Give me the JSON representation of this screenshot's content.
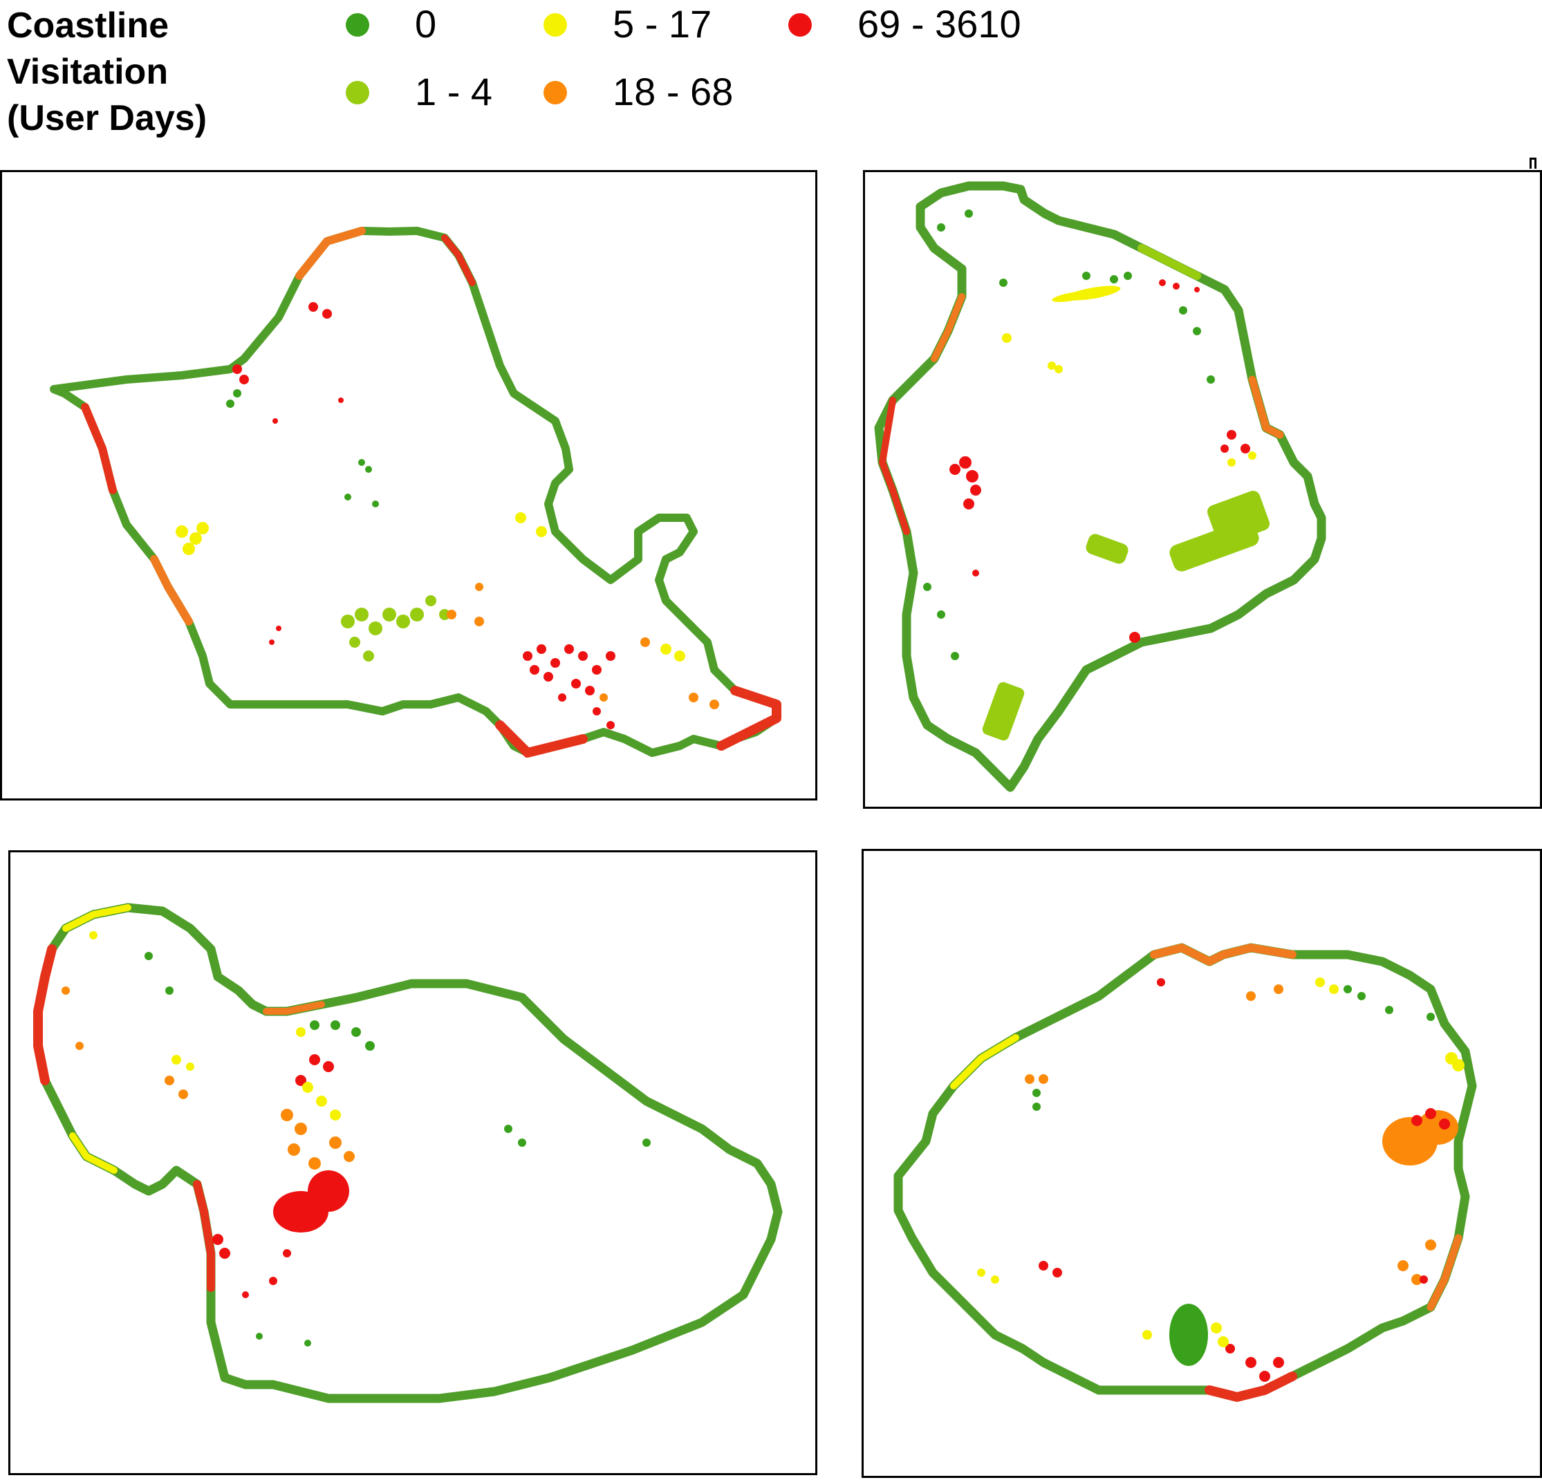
{
  "legend": {
    "title": "Coastline\nVisitation\n(User Days)",
    "entries": [
      {
        "label": "0",
        "color": "#3aa11c"
      },
      {
        "label": "1 - 4",
        "color": "#98cc10"
      },
      {
        "label": "5 - 17",
        "color": "#f5f200"
      },
      {
        "label": "18 - 68",
        "color": "#fb8a0b"
      },
      {
        "label": "69 - 3610",
        "color": "#ee1111"
      }
    ]
  },
  "colors": {
    "coast_outline": "#4f9e2a",
    "frame": "#000000",
    "background": "#ffffff"
  },
  "maps": [
    {
      "island": "oahu-map"
    },
    {
      "island": "hawaii-map"
    },
    {
      "island": "maui-map"
    },
    {
      "island": "kauai-map"
    }
  ]
}
